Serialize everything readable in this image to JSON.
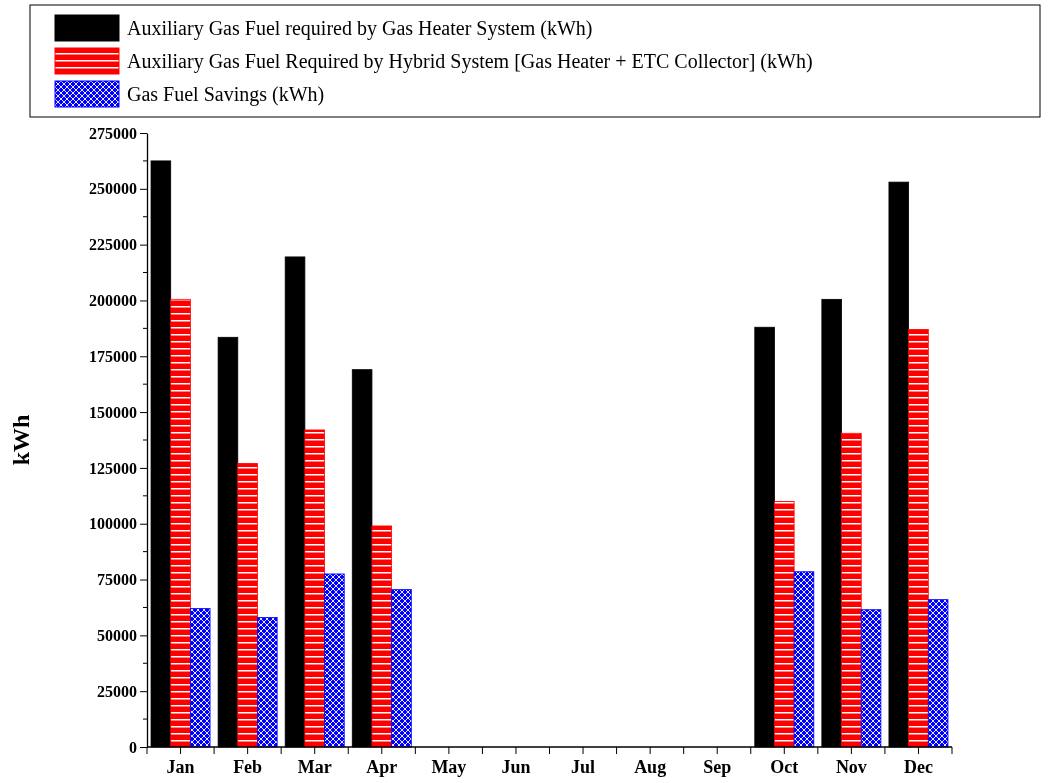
{
  "chart_data": {
    "type": "bar",
    "ylabel": "kWh",
    "categories": [
      "Jan",
      "Feb",
      "Mar",
      "Apr",
      "May",
      "Jun",
      "Jul",
      "Aug",
      "Sep",
      "Oct",
      "Nov",
      "Dec"
    ],
    "series": [
      {
        "name": "Auxiliary Gas Fuel required by Gas Heater System (kWh)",
        "color": "#000000",
        "values": [
          262500,
          183500,
          219500,
          169000,
          null,
          null,
          null,
          null,
          null,
          188000,
          200500,
          253000
        ]
      },
      {
        "name": "Auxiliary Gas Fuel Required by Hybrid System [Gas Heater + ETC Collector] (kWh)",
        "color": "#ff0000",
        "values": [
          200500,
          127000,
          142000,
          99000,
          null,
          null,
          null,
          null,
          null,
          110000,
          140500,
          187000
        ]
      },
      {
        "name": "Gas Fuel Savings (kWh)",
        "color": "#0000ff",
        "values": [
          62000,
          58000,
          77500,
          70500,
          null,
          null,
          null,
          null,
          null,
          78500,
          61500,
          66000
        ]
      }
    ],
    "ylim": [
      0,
      275000
    ],
    "yticks": [
      0,
      25000,
      50000,
      75000,
      100000,
      125000,
      150000,
      175000,
      200000,
      225000,
      250000,
      275000
    ],
    "grid": false,
    "legend": "top"
  }
}
